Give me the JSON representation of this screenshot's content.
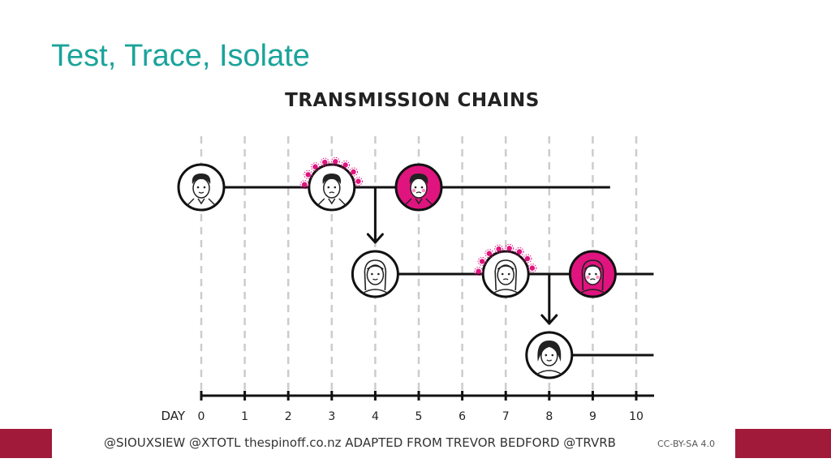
{
  "slide": {
    "title": "Test, Trace, Isolate"
  },
  "diagram": {
    "heading": "TRANSMISSION CHAINS",
    "axis_label": "DAY",
    "days": [
      "0",
      "1",
      "2",
      "3",
      "4",
      "5",
      "6",
      "7",
      "8",
      "9",
      "10"
    ],
    "chains": [
      {
        "person": "man-short-hair",
        "row": 0,
        "events": [
          {
            "day": 0,
            "state": "healthy"
          },
          {
            "day": 3,
            "state": "infectious"
          },
          {
            "day": 5,
            "state": "symptomatic"
          }
        ],
        "line_from_day": 0,
        "line_to_day": 9.4
      },
      {
        "person": "woman-long-hair",
        "row": 1,
        "infected_by_row": 0,
        "infected_on_day": 4,
        "events": [
          {
            "day": 4,
            "state": "healthy"
          },
          {
            "day": 7,
            "state": "infectious"
          },
          {
            "day": 9,
            "state": "symptomatic"
          }
        ],
        "line_from_day": 4,
        "line_to_day": 10.4
      },
      {
        "person": "woman-bob-hair",
        "row": 2,
        "infected_by_row": 1,
        "infected_on_day": 8,
        "events": [
          {
            "day": 8,
            "state": "healthy"
          }
        ],
        "line_from_day": 8,
        "line_to_day": 10.4
      }
    ],
    "colors": {
      "symptomatic": "#e0147e",
      "virus": "#e0147e",
      "line": "#111111",
      "gridline": "#cccccc"
    }
  },
  "footer": {
    "credit": "@SIOUXSIEW @XTOTL thespinoff.co.nz  ADAPTED FROM TREVOR BEDFORD @TRVRB",
    "license": "CC-BY-SA 4.0",
    "bar_color": "#a11a39"
  }
}
